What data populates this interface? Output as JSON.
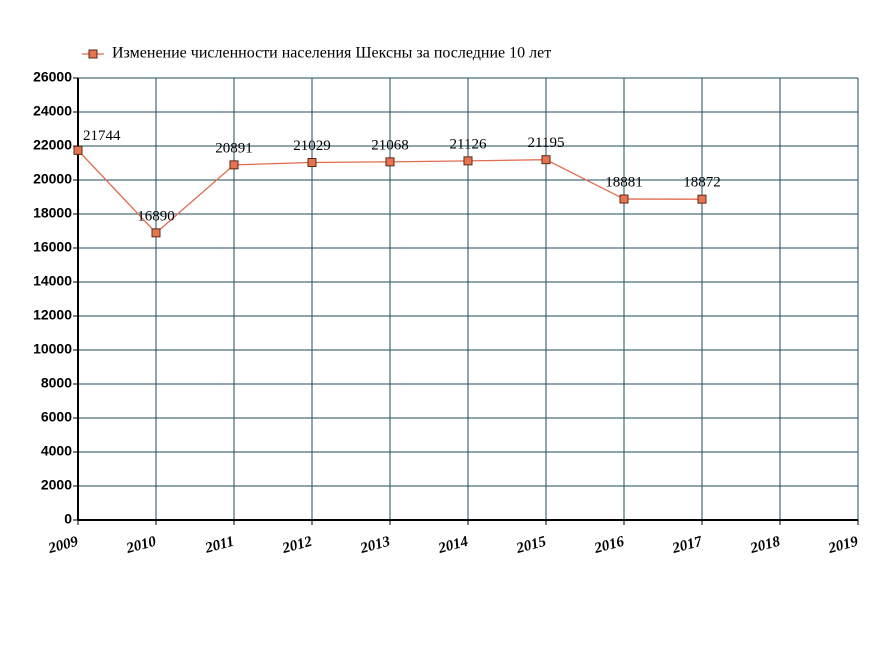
{
  "chart_data": {
    "type": "line",
    "x": [
      2009,
      2010,
      2011,
      2012,
      2013,
      2014,
      2015,
      2016,
      2017
    ],
    "series": [
      {
        "name": "Изменение численности населения Шексны за последние 10 лет",
        "color": "#e06b50",
        "values": [
          21744,
          16890,
          20891,
          21029,
          21068,
          21126,
          21195,
          18881,
          18872
        ]
      }
    ],
    "xlim": [
      2009,
      2019
    ],
    "xticks": [
      2009,
      2010,
      2011,
      2012,
      2013,
      2014,
      2015,
      2016,
      2017,
      2018,
      2019
    ],
    "ylim": [
      0,
      26000
    ],
    "yticks": [
      0,
      2000,
      4000,
      6000,
      8000,
      10000,
      12000,
      14000,
      16000,
      18000,
      20000,
      22000,
      24000,
      26000
    ],
    "grid": true,
    "legend": "top-left",
    "data_labels": true
  }
}
